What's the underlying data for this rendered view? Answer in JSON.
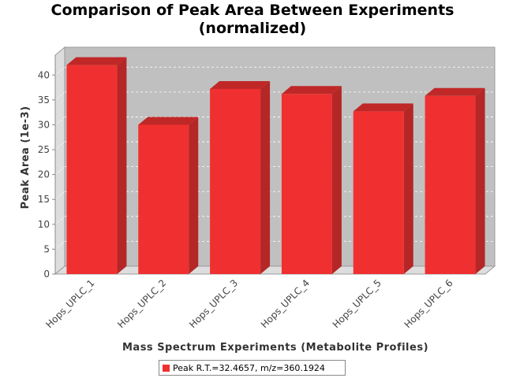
{
  "chart_data": {
    "type": "bar",
    "title": [
      "Comparison of Peak Area Between Experiments",
      "(normalized)"
    ],
    "xlabel": "Mass Spectrum Experiments (Metabolite Profiles)",
    "ylabel": "Peak Area (1e-3)",
    "categories": [
      "Hops_UPLC_1",
      "Hops_UPLC_2",
      "Hops_UPLC_3",
      "Hops_UPLC_4",
      "Hops_UPLC_5",
      "Hops_UPLC_6"
    ],
    "series": [
      {
        "name": "Peak R.T.=32.4657, m/z=360.1924",
        "values": [
          42.0,
          30.0,
          37.2,
          36.2,
          32.7,
          35.8
        ],
        "color": "#f03030"
      }
    ],
    "ylim": [
      0,
      44
    ],
    "yticks": [
      0,
      5,
      10,
      15,
      20,
      25,
      30,
      35,
      40
    ],
    "grid": true,
    "legend_position": "bottom",
    "three_d": true
  }
}
